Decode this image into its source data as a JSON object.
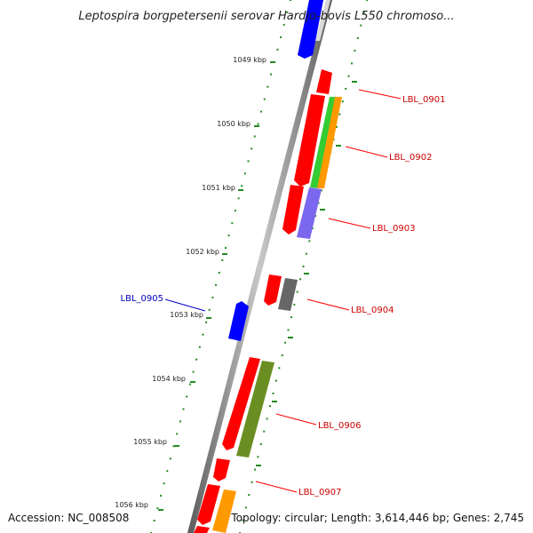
{
  "title": "Leptospira borgpetersenii serovar Hardjo-bovis L550 chromoso...",
  "footer": {
    "accession": "Accession: NC_008508",
    "topology": "Topology: circular; Length: 3,614,446 bp; Genes: 2,745"
  },
  "scale_labels": [
    "1049 kbp",
    "1050 kbp",
    "1051 kbp",
    "1052 kbp",
    "1053 kbp",
    "1054 kbp",
    "1055 kbp",
    "1056 kbp"
  ],
  "gene_labels": [
    {
      "text": "LBL_0901",
      "color": "#cc0000"
    },
    {
      "text": "LBL_0902",
      "color": "#cc0000"
    },
    {
      "text": "LBL_0903",
      "color": "#cc0000"
    },
    {
      "text": "LBL_0904",
      "color": "#cc0000"
    },
    {
      "text": "LBL_0905",
      "color": "#0000bb"
    },
    {
      "text": "LBL_0906",
      "color": "#cc0000"
    },
    {
      "text": "LBL_0907",
      "color": "#cc0000"
    }
  ],
  "colors": {
    "backbone": "#808080",
    "ticks": "#228b22",
    "forward_cds": "#ff0000",
    "reverse_cds": "#0000ff",
    "label_line_red": "#ff0000",
    "label_line_blue": "#0000cc"
  }
}
